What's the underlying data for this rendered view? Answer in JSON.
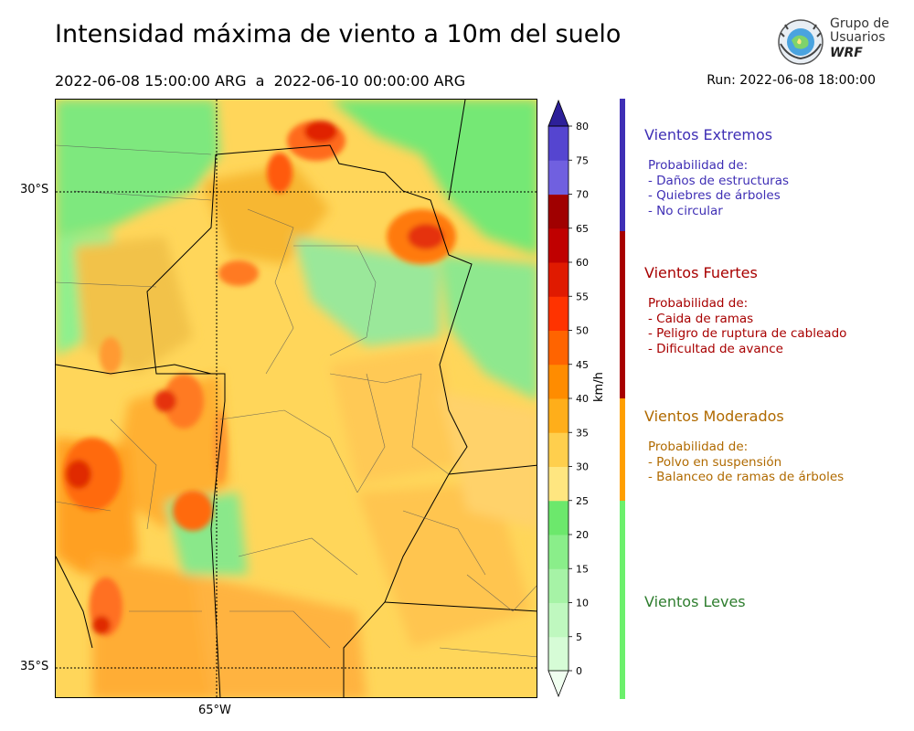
{
  "header": {
    "title": "Intensidad máxima de viento a 10m del suelo",
    "period": "2022-06-08 15:00:00 ARG  a  2022-06-10 00:00:00 ARG",
    "run": "Run: 2022-06-08 18:00:00"
  },
  "logo": {
    "line1": "Grupo de",
    "line2": "Usuarios",
    "line3": "WRF"
  },
  "map": {
    "lat_labels": [
      "30°S",
      "35°S"
    ],
    "lon_labels": [
      "65°W"
    ]
  },
  "colorbar": {
    "unit": "km/h",
    "ticks": [
      "0",
      "5",
      "10",
      "15",
      "20",
      "25",
      "30",
      "35",
      "40",
      "45",
      "50",
      "55",
      "60",
      "65",
      "70",
      "75",
      "80"
    ],
    "colors": [
      "#f0fff0",
      "#d6fcd6",
      "#bff8bf",
      "#a6f3a6",
      "#8aee8a",
      "#6ce86c",
      "#ffe680",
      "#ffcf4d",
      "#ffae1a",
      "#ff8c00",
      "#ff6400",
      "#ff3300",
      "#e01a00",
      "#c00000",
      "#a00000",
      "#7060e0",
      "#5545d0",
      "#3a2fb8",
      "#2d2099"
    ]
  },
  "categories": [
    {
      "title": "Vientos Extremos",
      "color": "#3f2fb5",
      "bar": "#3f2fb5",
      "head": "Probabilidad de:",
      "items": [
        "- Daños de estructuras",
        "- Quiebres de árboles",
        "- No circular"
      ]
    },
    {
      "title": "Vientos Fuertes",
      "color": "#a80000",
      "bar": "#a80000",
      "head": "Probabilidad de:",
      "items": [
        "- Caida de ramas",
        "- Peligro de ruptura de cableado",
        "- Dificultad de avance"
      ]
    },
    {
      "title": "Vientos Moderados",
      "color": "#b06a00",
      "bar": "#ff9f00",
      "head": "Probabilidad de:",
      "items": [
        "- Polvo en suspensión",
        "- Balanceo de ramas de árboles"
      ]
    },
    {
      "title": "Vientos Leves",
      "color": "#2e7d2e",
      "bar": "#6cf06c",
      "head": "",
      "items": []
    }
  ]
}
